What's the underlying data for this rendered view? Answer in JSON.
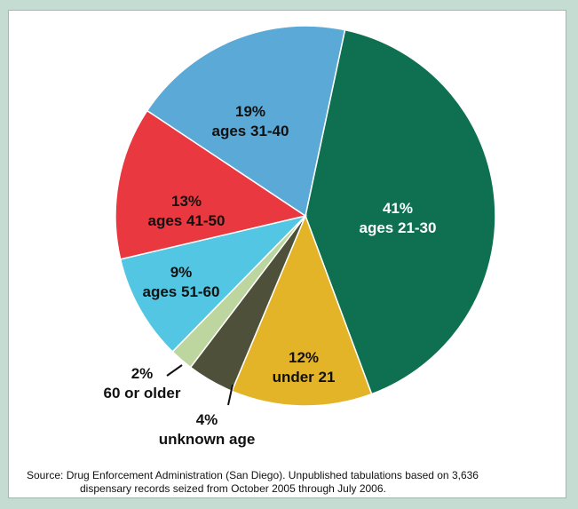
{
  "chart_data": {
    "type": "pie",
    "slices": [
      {
        "value": 41,
        "pct": "41%",
        "label": "ages 21-30",
        "color": "#0e7050"
      },
      {
        "value": 12,
        "pct": "12%",
        "label": "under 21",
        "color": "#e3b428"
      },
      {
        "value": 4,
        "pct": "4%",
        "label": "unknown age",
        "color": "#4f5039"
      },
      {
        "value": 2,
        "pct": "2%",
        "label": "60 or older",
        "color": "#bdd59e"
      },
      {
        "value": 9,
        "pct": "9%",
        "label": "ages 51-60",
        "color": "#52c6e3"
      },
      {
        "value": 13,
        "pct": "13%",
        "label": "ages 41-50",
        "color": "#e9383f"
      },
      {
        "value": 19,
        "pct": "19%",
        "label": "ages 31-40",
        "color": "#5ba9d6"
      }
    ]
  },
  "source": {
    "line1": "Source: Drug Enforcement Administration (San Diego). Unpublished tabulations based on 3,636",
    "line2": "dispensary records seized from October 2005 through July 2006."
  }
}
